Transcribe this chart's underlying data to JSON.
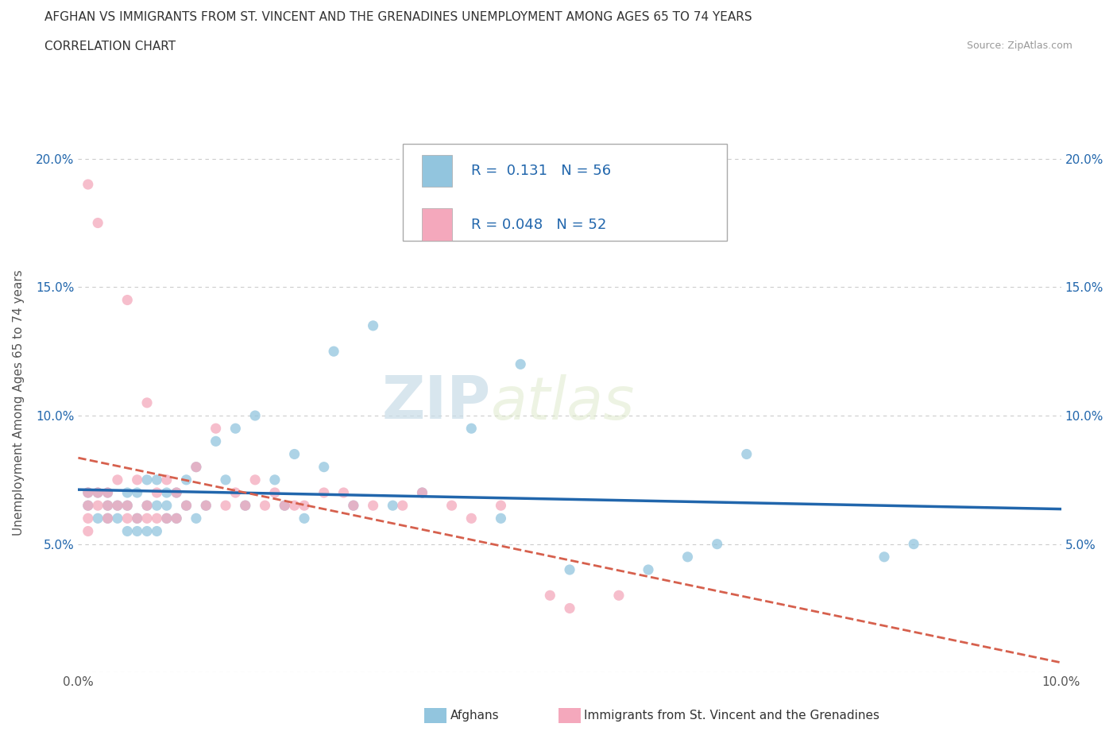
{
  "title_line1": "AFGHAN VS IMMIGRANTS FROM ST. VINCENT AND THE GRENADINES UNEMPLOYMENT AMONG AGES 65 TO 74 YEARS",
  "title_line2": "CORRELATION CHART",
  "source": "Source: ZipAtlas.com",
  "ylabel": "Unemployment Among Ages 65 to 74 years",
  "xlim": [
    0.0,
    0.1
  ],
  "ylim": [
    0.0,
    0.21
  ],
  "blue_color": "#92c5de",
  "pink_color": "#f4a8bc",
  "blue_line_color": "#2166ac",
  "pink_line_color": "#d6604d",
  "watermark_zip": "ZIP",
  "watermark_atlas": "atlas",
  "legend_R1": "0.131",
  "legend_N1": "56",
  "legend_R2": "0.048",
  "legend_N2": "52",
  "blue_scatter_x": [
    0.001,
    0.001,
    0.002,
    0.002,
    0.003,
    0.003,
    0.003,
    0.004,
    0.004,
    0.005,
    0.005,
    0.005,
    0.006,
    0.006,
    0.006,
    0.007,
    0.007,
    0.007,
    0.008,
    0.008,
    0.008,
    0.009,
    0.009,
    0.009,
    0.01,
    0.01,
    0.011,
    0.011,
    0.012,
    0.012,
    0.013,
    0.014,
    0.015,
    0.016,
    0.017,
    0.018,
    0.02,
    0.021,
    0.022,
    0.023,
    0.025,
    0.026,
    0.028,
    0.03,
    0.032,
    0.035,
    0.04,
    0.043,
    0.045,
    0.05,
    0.058,
    0.062,
    0.065,
    0.068,
    0.082,
    0.085
  ],
  "blue_scatter_y": [
    0.065,
    0.07,
    0.06,
    0.07,
    0.06,
    0.065,
    0.07,
    0.06,
    0.065,
    0.055,
    0.065,
    0.07,
    0.055,
    0.06,
    0.07,
    0.055,
    0.065,
    0.075,
    0.055,
    0.065,
    0.075,
    0.06,
    0.065,
    0.07,
    0.06,
    0.07,
    0.065,
    0.075,
    0.06,
    0.08,
    0.065,
    0.09,
    0.075,
    0.095,
    0.065,
    0.1,
    0.075,
    0.065,
    0.085,
    0.06,
    0.08,
    0.125,
    0.065,
    0.135,
    0.065,
    0.07,
    0.095,
    0.06,
    0.12,
    0.04,
    0.04,
    0.045,
    0.05,
    0.085,
    0.045,
    0.05
  ],
  "pink_scatter_x": [
    0.001,
    0.001,
    0.001,
    0.001,
    0.001,
    0.002,
    0.002,
    0.002,
    0.003,
    0.003,
    0.003,
    0.004,
    0.004,
    0.005,
    0.005,
    0.005,
    0.006,
    0.006,
    0.007,
    0.007,
    0.007,
    0.008,
    0.008,
    0.009,
    0.009,
    0.01,
    0.01,
    0.011,
    0.012,
    0.013,
    0.014,
    0.015,
    0.016,
    0.017,
    0.018,
    0.019,
    0.02,
    0.021,
    0.022,
    0.023,
    0.025,
    0.027,
    0.028,
    0.03,
    0.033,
    0.035,
    0.038,
    0.04,
    0.043,
    0.048,
    0.05,
    0.055
  ],
  "pink_scatter_y": [
    0.065,
    0.07,
    0.06,
    0.055,
    0.19,
    0.065,
    0.07,
    0.175,
    0.06,
    0.065,
    0.07,
    0.065,
    0.075,
    0.06,
    0.065,
    0.145,
    0.06,
    0.075,
    0.06,
    0.065,
    0.105,
    0.06,
    0.07,
    0.06,
    0.075,
    0.06,
    0.07,
    0.065,
    0.08,
    0.065,
    0.095,
    0.065,
    0.07,
    0.065,
    0.075,
    0.065,
    0.07,
    0.065,
    0.065,
    0.065,
    0.07,
    0.07,
    0.065,
    0.065,
    0.065,
    0.07,
    0.065,
    0.06,
    0.065,
    0.03,
    0.025,
    0.03
  ],
  "grid_color": "#cccccc",
  "background_color": "#ffffff",
  "legend_label_blue": "Afghans",
  "legend_label_pink": "Immigrants from St. Vincent and the Grenadines"
}
